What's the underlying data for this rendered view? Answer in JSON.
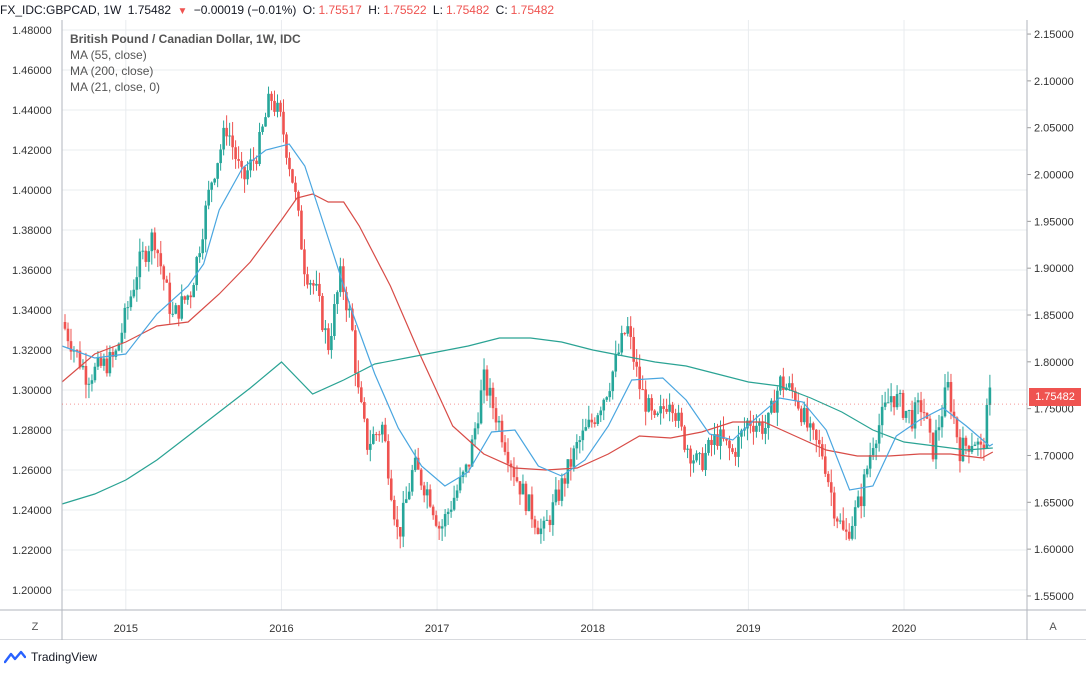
{
  "header": {
    "symbol": "FX_IDC:GBPCAD, 1W",
    "last": "1.75482",
    "change": "−0.00019 (−0.01%)",
    "o_label": "O:",
    "o": "1.75517",
    "h_label": "H:",
    "h": "1.75522",
    "l_label": "L:",
    "l": "1.75482",
    "c_label": "C:",
    "c": "1.75482"
  },
  "legend": {
    "title": "British Pound / Canadian Dollar, 1W, IDC",
    "ma1": "MA (55, close)",
    "ma2": "MA (200, close)",
    "ma3": "MA (21, close, 0)"
  },
  "price_tag": "1.75482",
  "footer": {
    "brand": "TradingView"
  },
  "corner": {
    "left": "Z",
    "right": "A"
  },
  "colors": {
    "up": "#26a69a",
    "down": "#ef5350",
    "ma55": "#d84c47",
    "ma200": "#2aa394",
    "ma21": "#4aa6e0",
    "grid": "#e9ecef"
  },
  "chart_data": {
    "type": "candlestick",
    "title": "British Pound / Canadian Dollar, 1W, IDC",
    "left_axis": {
      "range": [
        1.19,
        1.485
      ],
      "ticks": [
        "1.20000",
        "1.22000",
        "1.24000",
        "1.26000",
        "1.28000",
        "1.30000",
        "1.32000",
        "1.34000",
        "1.36000",
        "1.38000",
        "1.40000",
        "1.42000",
        "1.44000",
        "1.46000",
        "1.48000"
      ]
    },
    "right_axis": {
      "range": [
        1.535,
        2.165
      ],
      "ticks": [
        "1.55000",
        "1.60000",
        "1.65000",
        "1.70000",
        "1.75000",
        "1.80000",
        "1.85000",
        "1.90000",
        "1.95000",
        "2.00000",
        "2.05000",
        "2.10000",
        "2.15000"
      ]
    },
    "x_axis": {
      "range": [
        2014.59,
        2020.79
      ],
      "ticks": [
        {
          "label": "2015",
          "t": 2015
        },
        {
          "label": "2016",
          "t": 2016
        },
        {
          "label": "2017",
          "t": 2017
        },
        {
          "label": "2018",
          "t": 2018
        },
        {
          "label": "2019",
          "t": 2019
        },
        {
          "label": "2020",
          "t": 2020
        }
      ]
    },
    "close_path": [
      [
        2014.59,
        1.334
      ],
      [
        2014.75,
        1.307
      ],
      [
        2014.93,
        1.316
      ],
      [
        2015.08,
        1.362
      ],
      [
        2015.18,
        1.378
      ],
      [
        2015.3,
        1.336
      ],
      [
        2015.42,
        1.35
      ],
      [
        2015.55,
        1.405
      ],
      [
        2015.65,
        1.432
      ],
      [
        2015.75,
        1.404
      ],
      [
        2015.85,
        1.42
      ],
      [
        2015.93,
        1.447
      ],
      [
        2016.0,
        1.434
      ],
      [
        2016.08,
        1.402
      ],
      [
        2016.15,
        1.361
      ],
      [
        2016.22,
        1.35
      ],
      [
        2016.3,
        1.322
      ],
      [
        2016.38,
        1.357
      ],
      [
        2016.45,
        1.333
      ],
      [
        2016.49,
        1.3
      ],
      [
        2016.55,
        1.273
      ],
      [
        2016.65,
        1.282
      ],
      [
        2016.75,
        1.226
      ],
      [
        2016.85,
        1.262
      ],
      [
        2016.95,
        1.248
      ],
      [
        2017.02,
        1.23
      ],
      [
        2017.1,
        1.245
      ],
      [
        2017.2,
        1.262
      ],
      [
        2017.3,
        1.305
      ],
      [
        2017.4,
        1.283
      ],
      [
        2017.5,
        1.258
      ],
      [
        2017.6,
        1.24
      ],
      [
        2017.68,
        1.228
      ],
      [
        2017.78,
        1.248
      ],
      [
        2017.9,
        1.272
      ],
      [
        2018.0,
        1.285
      ],
      [
        2018.1,
        1.302
      ],
      [
        2018.22,
        1.332
      ],
      [
        2018.3,
        1.302
      ],
      [
        2018.4,
        1.282
      ],
      [
        2018.5,
        1.298
      ],
      [
        2018.58,
        1.276
      ],
      [
        2018.68,
        1.262
      ],
      [
        2018.8,
        1.277
      ],
      [
        2018.9,
        1.268
      ],
      [
        2019.0,
        1.285
      ],
      [
        2019.12,
        1.281
      ],
      [
        2019.2,
        1.304
      ],
      [
        2019.3,
        1.298
      ],
      [
        2019.4,
        1.277
      ],
      [
        2019.48,
        1.268
      ],
      [
        2019.55,
        1.242
      ],
      [
        2019.62,
        1.226
      ],
      [
        2019.72,
        1.245
      ],
      [
        2019.8,
        1.275
      ],
      [
        2019.92,
        1.298
      ],
      [
        2020.05,
        1.286
      ],
      [
        2020.12,
        1.293
      ],
      [
        2020.18,
        1.268
      ],
      [
        2020.28,
        1.302
      ],
      [
        2020.36,
        1.27
      ],
      [
        2020.45,
        1.276
      ],
      [
        2020.5,
        1.268
      ],
      [
        2020.55,
        1.297
      ],
      [
        2020.57,
        1.2967
      ]
    ],
    "series": [
      {
        "name": "MA (55, close)",
        "points": [
          [
            2014.59,
            1.304
          ],
          [
            2014.8,
            1.318
          ],
          [
            2015.0,
            1.324
          ],
          [
            2015.2,
            1.332
          ],
          [
            2015.4,
            1.334
          ],
          [
            2015.6,
            1.348
          ],
          [
            2015.8,
            1.364
          ],
          [
            2016.0,
            1.385
          ],
          [
            2016.1,
            1.396
          ],
          [
            2016.2,
            1.398
          ],
          [
            2016.3,
            1.394
          ],
          [
            2016.4,
            1.394
          ],
          [
            2016.5,
            1.382
          ],
          [
            2016.7,
            1.352
          ],
          [
            2016.9,
            1.316
          ],
          [
            2017.1,
            1.282
          ],
          [
            2017.3,
            1.268
          ],
          [
            2017.5,
            1.261
          ],
          [
            2017.7,
            1.26
          ],
          [
            2017.9,
            1.261
          ],
          [
            2018.1,
            1.268
          ],
          [
            2018.3,
            1.277
          ],
          [
            2018.5,
            1.276
          ],
          [
            2018.7,
            1.279
          ],
          [
            2018.9,
            1.284
          ],
          [
            2019.1,
            1.284
          ],
          [
            2019.3,
            1.277
          ],
          [
            2019.5,
            1.27
          ],
          [
            2019.7,
            1.267
          ],
          [
            2019.9,
            1.267
          ],
          [
            2020.1,
            1.268
          ],
          [
            2020.3,
            1.268
          ],
          [
            2020.5,
            1.266
          ],
          [
            2020.57,
            1.269
          ]
        ]
      },
      {
        "name": "MA (200, close)",
        "points": [
          [
            2014.59,
            1.243
          ],
          [
            2014.8,
            1.248
          ],
          [
            2015.0,
            1.255
          ],
          [
            2015.2,
            1.265
          ],
          [
            2015.4,
            1.277
          ],
          [
            2015.6,
            1.289
          ],
          [
            2015.8,
            1.301
          ],
          [
            2016.0,
            1.314
          ],
          [
            2016.2,
            1.298
          ],
          [
            2016.4,
            1.305
          ],
          [
            2016.6,
            1.313
          ],
          [
            2016.8,
            1.316
          ],
          [
            2017.0,
            1.319
          ],
          [
            2017.2,
            1.322
          ],
          [
            2017.4,
            1.326
          ],
          [
            2017.6,
            1.326
          ],
          [
            2017.8,
            1.324
          ],
          [
            2018.0,
            1.32
          ],
          [
            2018.2,
            1.317
          ],
          [
            2018.4,
            1.314
          ],
          [
            2018.6,
            1.312
          ],
          [
            2018.8,
            1.308
          ],
          [
            2019.0,
            1.304
          ],
          [
            2019.2,
            1.302
          ],
          [
            2019.4,
            1.296
          ],
          [
            2019.6,
            1.289
          ],
          [
            2019.8,
            1.28
          ],
          [
            2020.0,
            1.274
          ],
          [
            2020.2,
            1.272
          ],
          [
            2020.4,
            1.27
          ],
          [
            2020.57,
            1.271
          ]
        ]
      },
      {
        "name": "MA (21, close, 0)",
        "points": [
          [
            2014.59,
            1.322
          ],
          [
            2014.8,
            1.316
          ],
          [
            2015.0,
            1.318
          ],
          [
            2015.2,
            1.338
          ],
          [
            2015.4,
            1.352
          ],
          [
            2015.5,
            1.363
          ],
          [
            2015.6,
            1.39
          ],
          [
            2015.75,
            1.411
          ],
          [
            2015.9,
            1.42
          ],
          [
            2016.05,
            1.423
          ],
          [
            2016.15,
            1.412
          ],
          [
            2016.3,
            1.376
          ],
          [
            2016.45,
            1.34
          ],
          [
            2016.6,
            1.308
          ],
          [
            2016.75,
            1.281
          ],
          [
            2016.9,
            1.262
          ],
          [
            2017.05,
            1.252
          ],
          [
            2017.2,
            1.259
          ],
          [
            2017.35,
            1.279
          ],
          [
            2017.5,
            1.28
          ],
          [
            2017.65,
            1.262
          ],
          [
            2017.8,
            1.257
          ],
          [
            2017.95,
            1.265
          ],
          [
            2018.1,
            1.282
          ],
          [
            2018.25,
            1.305
          ],
          [
            2018.45,
            1.306
          ],
          [
            2018.6,
            1.295
          ],
          [
            2018.75,
            1.278
          ],
          [
            2018.9,
            1.275
          ],
          [
            2019.05,
            1.286
          ],
          [
            2019.2,
            1.296
          ],
          [
            2019.35,
            1.294
          ],
          [
            2019.5,
            1.28
          ],
          [
            2019.65,
            1.25
          ],
          [
            2019.8,
            1.252
          ],
          [
            2019.95,
            1.277
          ],
          [
            2020.1,
            1.285
          ],
          [
            2020.25,
            1.291
          ],
          [
            2020.4,
            1.282
          ],
          [
            2020.55,
            1.272
          ],
          [
            2020.57,
            1.273
          ]
        ]
      }
    ]
  }
}
